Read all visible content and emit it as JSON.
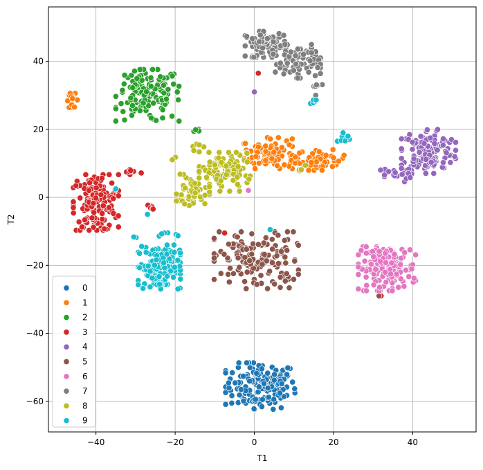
{
  "chart_data": {
    "type": "scatter",
    "title": "",
    "xlabel": "T1",
    "ylabel": "T2",
    "xlim": [
      -52,
      56
    ],
    "ylim": [
      -69,
      56
    ],
    "xticks": [
      -40,
      -20,
      0,
      20,
      40
    ],
    "xtick_labels": [
      "−40",
      "−20",
      "0",
      "20",
      "40"
    ],
    "yticks": [
      -60,
      -40,
      -20,
      0,
      20,
      40
    ],
    "ytick_labels": [
      "−60",
      "−40",
      "−20",
      "0",
      "20",
      "40"
    ],
    "grid": true,
    "legend_position": "lower-left",
    "series": [
      {
        "name": "0",
        "color": "#1f77b4",
        "clusters": [
          {
            "cx": 1.5,
            "cy": -55.5,
            "sx": 4.6,
            "sy": 3.6,
            "n": 150
          }
        ]
      },
      {
        "name": "1",
        "color": "#ff7f0e",
        "clusters": [
          {
            "cx": 3.5,
            "cy": 13,
            "sx": 3.2,
            "sy": 2.4,
            "n": 90
          },
          {
            "cx": 17,
            "cy": 11,
            "sx": 3.2,
            "sy": 1.6,
            "n": 45
          },
          {
            "cx": -46,
            "cy": 28.5,
            "sx": 0.8,
            "sy": 1.1,
            "n": 14
          },
          {
            "cx": 10,
            "cy": 10,
            "sx": 1.5,
            "sy": 1.5,
            "n": 6
          }
        ]
      },
      {
        "name": "2",
        "color": "#2ca02c",
        "clusters": [
          {
            "cx": -27,
            "cy": 30,
            "sx": 4.2,
            "sy": 4.0,
            "n": 150
          },
          {
            "cx": -14,
            "cy": 19.8,
            "sx": 0.8,
            "sy": 0.4,
            "n": 4
          }
        ]
      },
      {
        "name": "3",
        "color": "#d62728",
        "clusters": [
          {
            "cx": -40,
            "cy": -1.5,
            "sx": 3.0,
            "sy": 4.3,
            "n": 150
          },
          {
            "cx": -31,
            "cy": 7.5,
            "sx": 1.4,
            "sy": 0.8,
            "n": 8
          },
          {
            "cx": -26,
            "cy": -3,
            "sx": 0.8,
            "sy": 0.8,
            "n": 6
          },
          {
            "cx": 1,
            "cy": 36.5,
            "sx": 0.3,
            "sy": 0.3,
            "n": 1
          },
          {
            "cx": 16.5,
            "cy": 40.5,
            "sx": 0.3,
            "sy": 0.3,
            "n": 1
          },
          {
            "cx": -7.5,
            "cy": -10.5,
            "sx": 0.3,
            "sy": 0.3,
            "n": 1
          },
          {
            "cx": 32,
            "cy": -29,
            "sx": 0.3,
            "sy": 0.3,
            "n": 1
          }
        ]
      },
      {
        "name": "4",
        "color": "#9467bd",
        "clusters": [
          {
            "cx": 44,
            "cy": 13.5,
            "sx": 3.6,
            "sy": 3.4,
            "n": 130
          },
          {
            "cx": 35,
            "cy": 6.5,
            "sx": 2.5,
            "sy": 1.0,
            "n": 20
          },
          {
            "cx": 0,
            "cy": 31,
            "sx": 0.3,
            "sy": 0.3,
            "n": 1
          }
        ]
      },
      {
        "name": "5",
        "color": "#8c564b",
        "clusters": [
          {
            "cx": 0.5,
            "cy": -18.5,
            "sx": 5.6,
            "sy": 4.4,
            "n": 150
          },
          {
            "cx": 31.5,
            "cy": -29,
            "sx": 0.3,
            "sy": 0.3,
            "n": 1
          }
        ]
      },
      {
        "name": "6",
        "color": "#e377c2",
        "clusters": [
          {
            "cx": 33.5,
            "cy": -21,
            "sx": 3.8,
            "sy": 3.4,
            "n": 150
          },
          {
            "cx": -1.5,
            "cy": 2,
            "sx": 0.3,
            "sy": 0.3,
            "n": 1
          }
        ]
      },
      {
        "name": "7",
        "color": "#7f7f7f",
        "clusters": [
          {
            "cx": 3,
            "cy": 45,
            "sx": 2.8,
            "sy": 2.0,
            "n": 80
          },
          {
            "cx": 11,
            "cy": 40,
            "sx": 3.0,
            "sy": 2.6,
            "n": 80
          },
          {
            "cx": 16,
            "cy": 33,
            "sx": 1.0,
            "sy": 0.4,
            "n": 5
          },
          {
            "cx": 15.5,
            "cy": 30,
            "sx": 0.3,
            "sy": 0.3,
            "n": 1
          }
        ]
      },
      {
        "name": "8",
        "color": "#bcbd22",
        "clusters": [
          {
            "cx": -7.5,
            "cy": 7.5,
            "sx": 3.4,
            "sy": 3.0,
            "n": 90
          },
          {
            "cx": -15.5,
            "cy": 1.5,
            "sx": 2.2,
            "sy": 2.8,
            "n": 45
          },
          {
            "cx": -14,
            "cy": 14.5,
            "sx": 1.2,
            "sy": 0.6,
            "n": 6
          },
          {
            "cx": -20,
            "cy": 11.8,
            "sx": 0.8,
            "sy": 0.4,
            "n": 2
          },
          {
            "cx": 11,
            "cy": 9,
            "sx": 1.0,
            "sy": 0.5,
            "n": 3
          }
        ]
      },
      {
        "name": "9",
        "color": "#17becf",
        "clusters": [
          {
            "cx": -24,
            "cy": -20.5,
            "sx": 2.8,
            "sy": 3.4,
            "n": 140
          },
          {
            "cx": -23,
            "cy": -11.5,
            "sx": 2.0,
            "sy": 0.6,
            "n": 6
          },
          {
            "cx": 15,
            "cy": 28,
            "sx": 0.6,
            "sy": 0.8,
            "n": 6
          },
          {
            "cx": 22.5,
            "cy": 17.5,
            "sx": 0.8,
            "sy": 1.0,
            "n": 8
          },
          {
            "cx": -31,
            "cy": -12,
            "sx": 0.6,
            "sy": 0.3,
            "n": 2
          },
          {
            "cx": -35,
            "cy": 2.5,
            "sx": 0.3,
            "sy": 0.3,
            "n": 1
          },
          {
            "cx": 4,
            "cy": -9.5,
            "sx": 0.3,
            "sy": 0.3,
            "n": 1
          },
          {
            "cx": -27,
            "cy": -5,
            "sx": 0.3,
            "sy": 0.3,
            "n": 1
          }
        ]
      }
    ]
  }
}
